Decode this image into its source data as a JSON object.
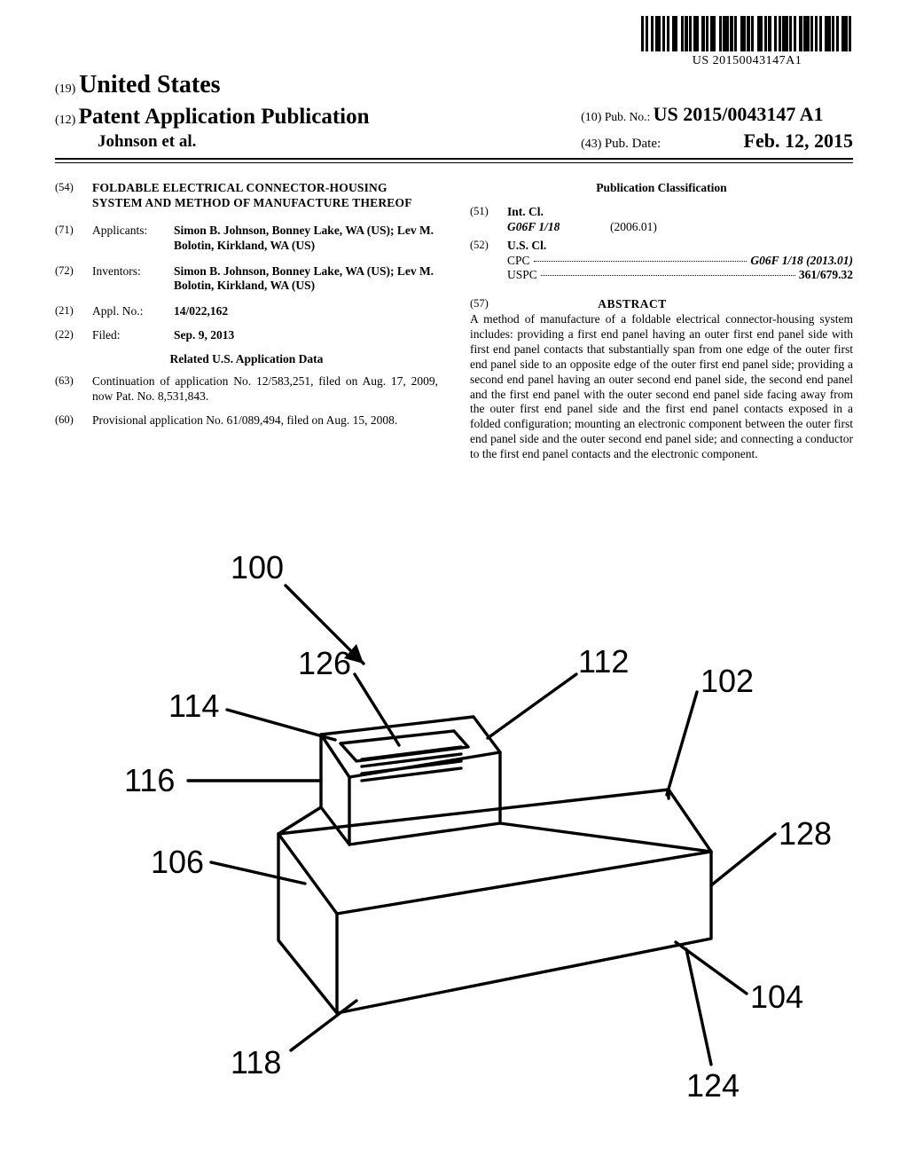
{
  "barcode": {
    "pattern": "1010010110101001100101010110010101100101101010011010100110101001010110101001011010101001101010011010",
    "bar_color": "#000000",
    "thin_w": 1.6,
    "thick_w": 3.2,
    "pubno_text": "US 20150043147A1"
  },
  "header": {
    "country_code": "(19)",
    "country": "United States",
    "doctype_code": "(12)",
    "doctype": "Patent Application Publication",
    "authors": "Johnson et al.",
    "pubno_code": "(10)",
    "pubno_label": "Pub. No.:",
    "pubno": "US 2015/0043147 A1",
    "pubdate_code": "(43)",
    "pubdate_label": "Pub. Date:",
    "pubdate": "Feb. 12, 2015"
  },
  "left_col": {
    "title_code": "(54)",
    "title": "FOLDABLE ELECTRICAL CONNECTOR-HOUSING SYSTEM AND METHOD OF MANUFACTURE THEREOF",
    "applicants_code": "(71)",
    "applicants_label": "Applicants:",
    "applicants_val": "Simon B. Johnson, Bonney Lake, WA (US); Lev M. Bolotin, Kirkland, WA (US)",
    "inventors_code": "(72)",
    "inventors_label": "Inventors:",
    "inventors_val": "Simon B. Johnson, Bonney Lake, WA (US); Lev M. Bolotin, Kirkland, WA (US)",
    "appl_code": "(21)",
    "appl_label": "Appl. No.:",
    "appl_val": "14/022,162",
    "filed_code": "(22)",
    "filed_label": "Filed:",
    "filed_val": "Sep. 9, 2013",
    "related_heading": "Related U.S. Application Data",
    "cont_code": "(63)",
    "cont_val": "Continuation of application No. 12/583,251, filed on Aug. 17, 2009, now Pat. No. 8,531,843.",
    "prov_code": "(60)",
    "prov_val": "Provisional application No. 61/089,494, filed on Aug. 15, 2008."
  },
  "right_col": {
    "pc_heading": "Publication Classification",
    "intcl_code": "(51)",
    "intcl_label": "Int. Cl.",
    "intcl_sym": "G06F 1/18",
    "intcl_ver": "(2006.01)",
    "uscl_code": "(52)",
    "uscl_label": "U.S. Cl.",
    "cpc_label": "CPC",
    "cpc_val": "G06F 1/18 (2013.01)",
    "uspc_label": "USPC",
    "uspc_val": "361/679.32",
    "abstract_code": "(57)",
    "abstract_heading": "ABSTRACT",
    "abstract_text": "A method of manufacture of a foldable electrical connector-housing system includes: providing a first end panel having an outer first end panel side with first end panel contacts that substantially span from one edge of the outer first end panel side to an opposite edge of the outer first end panel side; providing a second end panel having an outer second end panel side, the second end panel and the first end panel with the outer second end panel side facing away from the outer first end panel side and the first end panel contacts exposed in a folded configuration; mounting an electronic component between the outer first end panel side and the outer second end panel side; and connecting a conductor to the first end panel contacts and the electronic component."
  },
  "figure": {
    "stroke_color": "#000000",
    "stroke_width": 3.4,
    "label_fontsize": 36,
    "labels": {
      "n100": "100",
      "n114": "114",
      "n126": "126",
      "n112": "112",
      "n102": "102",
      "n116": "116",
      "n106": "106",
      "n128": "128",
      "n118": "118",
      "n104": "104",
      "n124": "124"
    }
  }
}
